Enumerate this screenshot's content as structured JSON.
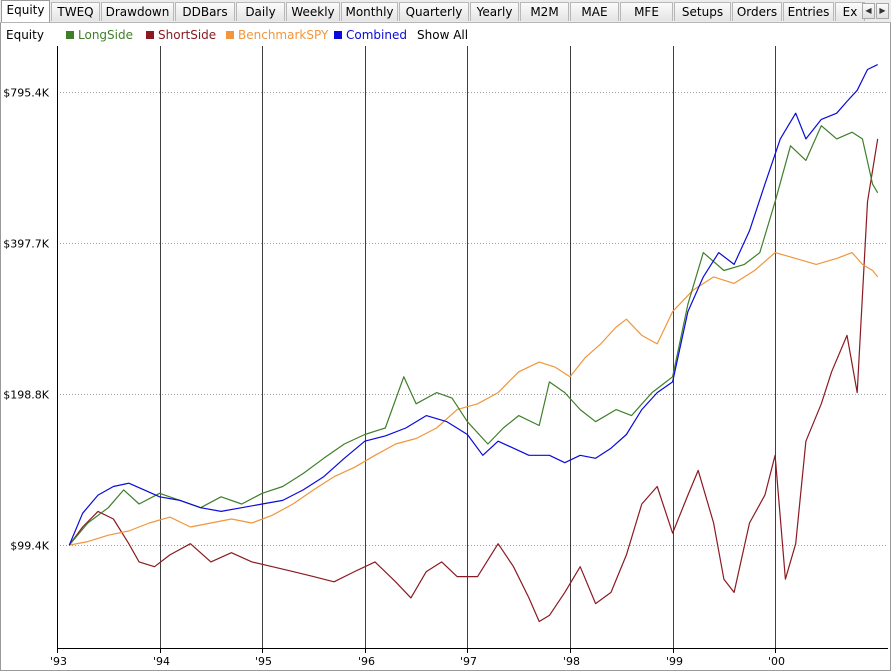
{
  "tabs": [
    "Equity",
    "TWEQ",
    "Drawdown",
    "DDBars",
    "Daily",
    "Weekly",
    "Monthly",
    "Quarterly",
    "Yearly",
    "M2M",
    "MAE",
    "MFE",
    "Setups",
    "Orders",
    "Entries",
    "Ex"
  ],
  "active_tab": "Equity",
  "legend": {
    "title": "Equity",
    "show_all": "Show All"
  },
  "colors": {
    "LongSide": "#3f7f2a",
    "ShortSide": "#8b1a22",
    "BenchmarkSPY": "#f0963c",
    "Combined": "#0a0adc",
    "grid_vertical": "#000000",
    "grid_horizontal": "#a0a0a0"
  },
  "chart_data": {
    "type": "line",
    "title": "",
    "xlabel": "",
    "ylabel": "",
    "y_scale": "log",
    "x_range": [
      1993.0,
      2001.1
    ],
    "y_range": [
      62000,
      980000
    ],
    "x_ticks": [
      {
        "x": 1993,
        "label": "'93"
      },
      {
        "x": 1994,
        "label": "'94"
      },
      {
        "x": 1995,
        "label": "'95"
      },
      {
        "x": 1996,
        "label": "'96"
      },
      {
        "x": 1997,
        "label": "'97"
      },
      {
        "x": 1998,
        "label": "'98"
      },
      {
        "x": 1999,
        "label": "'99"
      },
      {
        "x": 2000,
        "label": "'00"
      }
    ],
    "y_ticks": [
      {
        "y": 99400,
        "label": "$99.4K"
      },
      {
        "y": 198800,
        "label": "$198.8K"
      },
      {
        "y": 397700,
        "label": "$397.7K"
      },
      {
        "y": 795400,
        "label": "$795.4K"
      }
    ],
    "grid": {
      "vertical": true,
      "horizontal": "dotted"
    },
    "legend_position": "top-left",
    "series": [
      {
        "name": "LongSide",
        "x": [
          1993.12,
          1993.3,
          1993.5,
          1993.65,
          1993.8,
          1994.0,
          1994.2,
          1994.4,
          1994.6,
          1994.8,
          1995.0,
          1995.2,
          1995.4,
          1995.6,
          1995.8,
          1996.0,
          1996.2,
          1996.38,
          1996.5,
          1996.7,
          1996.85,
          1997.0,
          1997.2,
          1997.35,
          1997.5,
          1997.7,
          1997.8,
          1997.95,
          1998.1,
          1998.25,
          1998.45,
          1998.6,
          1998.8,
          1999.0,
          1999.15,
          1999.3,
          1999.5,
          1999.7,
          1999.85,
          2000.0,
          2000.15,
          2000.3,
          2000.45,
          2000.6,
          2000.75,
          2000.85,
          2000.95,
          2001.0
        ],
        "y": [
          99400,
          110000,
          118000,
          128000,
          120000,
          126000,
          122000,
          118000,
          124000,
          120000,
          126000,
          130000,
          138000,
          148000,
          158000,
          165000,
          170000,
          215000,
          190000,
          200000,
          195000,
          175000,
          158000,
          170000,
          180000,
          172000,
          210000,
          200000,
          185000,
          175000,
          185000,
          180000,
          200000,
          215000,
          300000,
          380000,
          350000,
          360000,
          380000,
          480000,
          620000,
          580000,
          680000,
          640000,
          660000,
          640000,
          520000,
          500000
        ]
      },
      {
        "name": "ShortSide",
        "x": [
          1993.12,
          1993.25,
          1993.4,
          1993.55,
          1993.7,
          1993.8,
          1993.95,
          1994.1,
          1994.3,
          1994.5,
          1994.7,
          1994.9,
          1995.1,
          1995.3,
          1995.5,
          1995.7,
          1995.9,
          1996.1,
          1996.3,
          1996.45,
          1996.6,
          1996.75,
          1996.9,
          1997.1,
          1997.3,
          1997.45,
          1997.6,
          1997.7,
          1997.8,
          1997.95,
          1998.1,
          1998.25,
          1998.4,
          1998.55,
          1998.7,
          1998.85,
          1999.0,
          1999.15,
          1999.25,
          1999.4,
          1999.5,
          1999.6,
          1999.75,
          1999.9,
          2000.0,
          2000.1,
          2000.2,
          2000.3,
          2000.45,
          2000.55,
          2000.7,
          2000.8,
          2000.9,
          2001.0
        ],
        "y": [
          99400,
          108000,
          116000,
          112000,
          100000,
          92000,
          90000,
          95000,
          100000,
          92000,
          96000,
          92000,
          90000,
          88000,
          86000,
          84000,
          88000,
          92000,
          84000,
          78000,
          88000,
          92000,
          86000,
          86000,
          100000,
          90000,
          78000,
          70000,
          72000,
          80000,
          90000,
          76000,
          80000,
          95000,
          120000,
          130000,
          105000,
          125000,
          140000,
          110000,
          85000,
          80000,
          110000,
          125000,
          150000,
          85000,
          100000,
          160000,
          190000,
          220000,
          260000,
          200000,
          480000,
          640000
        ]
      },
      {
        "name": "BenchmarkSPY",
        "x": [
          1993.12,
          1993.3,
          1993.5,
          1993.7,
          1993.9,
          1994.1,
          1994.3,
          1994.5,
          1994.7,
          1994.9,
          1995.1,
          1995.3,
          1995.5,
          1995.7,
          1995.9,
          1996.1,
          1996.3,
          1996.5,
          1996.7,
          1996.9,
          1997.1,
          1997.3,
          1997.5,
          1997.7,
          1997.85,
          1998.0,
          1998.15,
          1998.3,
          1998.45,
          1998.55,
          1998.7,
          1998.85,
          1999.0,
          1999.2,
          1999.4,
          1999.6,
          1999.8,
          2000.0,
          2000.2,
          2000.4,
          2000.6,
          2000.75,
          2000.85,
          2000.95,
          2001.0
        ],
        "y": [
          99400,
          101000,
          104000,
          106000,
          110000,
          113000,
          108000,
          110000,
          112000,
          110000,
          114000,
          120000,
          128000,
          136000,
          142000,
          150000,
          158000,
          162000,
          170000,
          185000,
          190000,
          200000,
          220000,
          230000,
          225000,
          215000,
          235000,
          250000,
          270000,
          280000,
          260000,
          250000,
          290000,
          320000,
          340000,
          330000,
          350000,
          380000,
          370000,
          360000,
          370000,
          380000,
          360000,
          350000,
          340000
        ]
      },
      {
        "name": "Combined",
        "x": [
          1993.12,
          1993.25,
          1993.4,
          1993.55,
          1993.7,
          1993.85,
          1994.0,
          1994.2,
          1994.4,
          1994.6,
          1994.8,
          1995.0,
          1995.2,
          1995.4,
          1995.6,
          1995.8,
          1996.0,
          1996.2,
          1996.4,
          1996.6,
          1996.8,
          1997.0,
          1997.15,
          1997.3,
          1997.45,
          1997.6,
          1997.8,
          1997.95,
          1998.1,
          1998.25,
          1998.4,
          1998.55,
          1998.7,
          1998.85,
          1999.0,
          1999.15,
          1999.3,
          1999.45,
          1999.6,
          1999.75,
          1999.9,
          2000.05,
          2000.2,
          2000.3,
          2000.45,
          2000.6,
          2000.7,
          2000.8,
          2000.9,
          2001.0
        ],
        "y": [
          99400,
          115000,
          125000,
          130000,
          132000,
          128000,
          124000,
          122000,
          118000,
          116000,
          118000,
          120000,
          122000,
          128000,
          136000,
          148000,
          160000,
          164000,
          170000,
          180000,
          175000,
          165000,
          150000,
          160000,
          155000,
          150000,
          150000,
          145000,
          150000,
          148000,
          155000,
          165000,
          185000,
          200000,
          210000,
          290000,
          340000,
          380000,
          360000,
          420000,
          520000,
          640000,
          720000,
          640000,
          700000,
          720000,
          760000,
          800000,
          880000,
          900000
        ]
      }
    ]
  }
}
